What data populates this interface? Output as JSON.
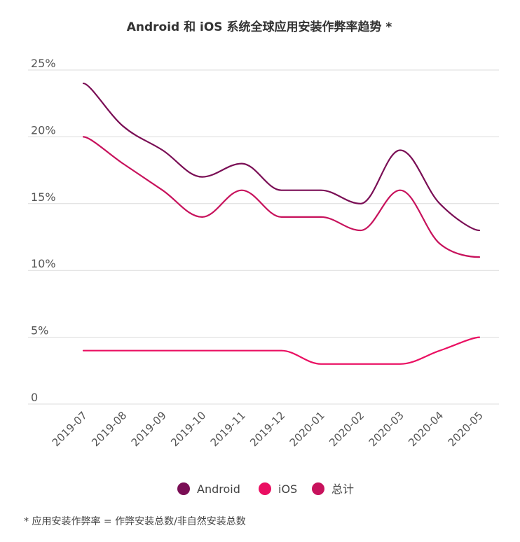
{
  "chart_data": {
    "type": "line",
    "title": "Android 和 iOS 系统全球应用安装作弊率趋势 *",
    "categories": [
      "2019-07",
      "2019-08",
      "2019-09",
      "2019-10",
      "2019-11",
      "2019-12",
      "2020-01",
      "2020-02",
      "2020-03",
      "2020-04",
      "2020-05"
    ],
    "y_ticks": [
      "0",
      "5%",
      "10%",
      "15%",
      "20%",
      "25%"
    ],
    "ylim": [
      0,
      25
    ],
    "grid": true,
    "legend_position": "bottom",
    "series": [
      {
        "name": "Android",
        "color": "#7a0e55",
        "values": [
          24,
          20.8,
          19,
          17,
          18,
          16,
          16,
          15,
          19,
          15,
          13
        ]
      },
      {
        "name": "iOS",
        "color": "#ea0f62",
        "values": [
          4,
          4,
          4,
          4,
          4,
          4,
          3,
          3,
          3,
          4,
          5
        ]
      },
      {
        "name": "总计",
        "color": "#c7125c",
        "values": [
          20,
          18,
          16,
          14,
          16,
          14,
          14,
          13,
          16,
          12,
          11
        ]
      }
    ]
  },
  "footnote": "* 应用安装作弊率 = 作弊安装总数/非自然安装总数"
}
